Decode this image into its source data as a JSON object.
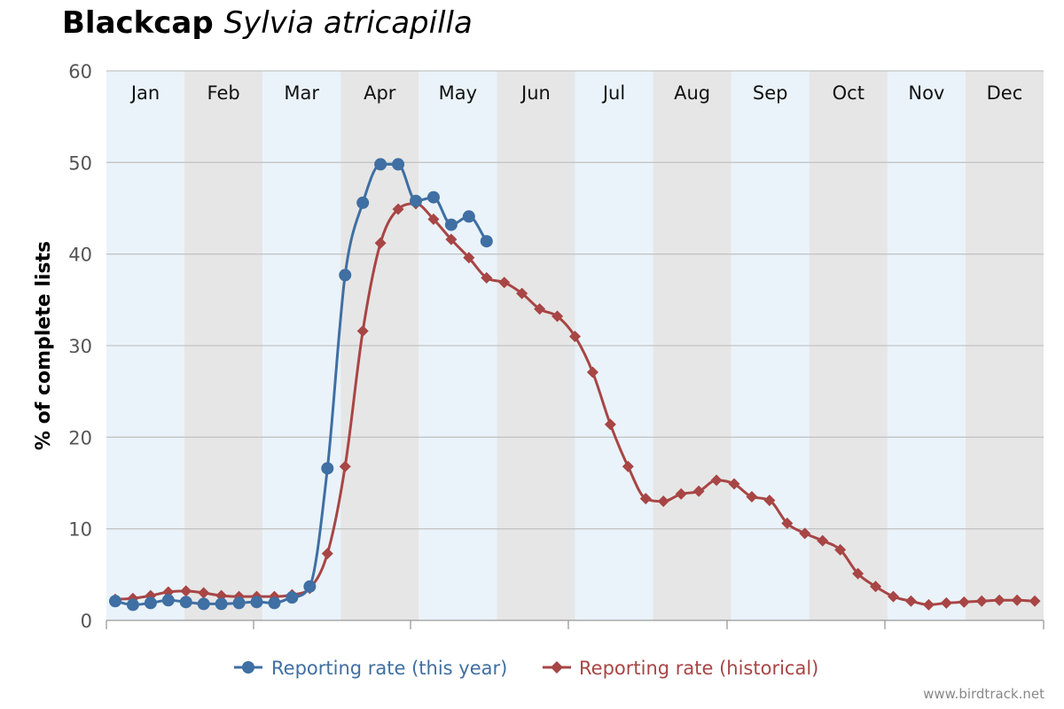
{
  "chart_data": {
    "type": "line",
    "title": "Blackcap",
    "title_scientific": "Sylvia atricapilla",
    "xlabel": "",
    "ylabel": "% of complete lists",
    "ylim": [
      0,
      60
    ],
    "yticks": [
      0,
      10,
      20,
      30,
      40,
      50,
      60
    ],
    "x_range": [
      1,
      53
    ],
    "months": [
      "Jan",
      "Feb",
      "Mar",
      "Apr",
      "May",
      "Jun",
      "Jul",
      "Aug",
      "Sep",
      "Oct",
      "Nov",
      "Dec"
    ],
    "grid": true,
    "legend_position": "bottom-center",
    "series": [
      {
        "name": "Reporting rate (this year)",
        "color": "#3f6fa3",
        "marker": "circle",
        "x": [
          1,
          2,
          3,
          4,
          5,
          6,
          7,
          8,
          9,
          10,
          11,
          12,
          13,
          14,
          15,
          16,
          17,
          18,
          19,
          20,
          21,
          22
        ],
        "values": [
          2.1,
          1.7,
          1.9,
          2.2,
          2.0,
          1.8,
          1.8,
          1.9,
          2.0,
          1.9,
          2.5,
          3.7,
          16.6,
          37.7,
          45.6,
          49.8,
          49.8,
          45.8,
          46.2,
          43.2,
          44.1,
          41.4
        ]
      },
      {
        "name": "Reporting rate (historical)",
        "color": "#a84545",
        "marker": "diamond",
        "x": [
          1,
          2,
          3,
          4,
          5,
          6,
          7,
          8,
          9,
          10,
          11,
          12,
          13,
          14,
          15,
          16,
          17,
          18,
          19,
          20,
          21,
          22,
          23,
          24,
          25,
          26,
          27,
          28,
          29,
          30,
          31,
          32,
          33,
          34,
          35,
          36,
          37,
          38,
          39,
          40,
          41,
          42,
          43,
          44,
          45,
          46,
          47,
          48,
          49,
          50,
          51,
          52,
          53
        ],
        "values": [
          2.3,
          2.4,
          2.7,
          3.1,
          3.2,
          3.0,
          2.7,
          2.6,
          2.6,
          2.6,
          2.8,
          3.5,
          7.3,
          16.8,
          31.6,
          41.2,
          44.9,
          45.5,
          43.8,
          41.6,
          39.6,
          37.4,
          36.9,
          35.7,
          34.0,
          33.2,
          31.0,
          27.1,
          21.4,
          16.8,
          13.3,
          13.0,
          13.8,
          14.1,
          15.3,
          14.9,
          13.5,
          13.1,
          10.6,
          9.5,
          8.7,
          7.7,
          5.1,
          3.7,
          2.6,
          2.1,
          1.7,
          1.9,
          2.0,
          2.1,
          2.2,
          2.2,
          2.1
        ]
      }
    ]
  },
  "watermark": "www.birdtrack.net"
}
